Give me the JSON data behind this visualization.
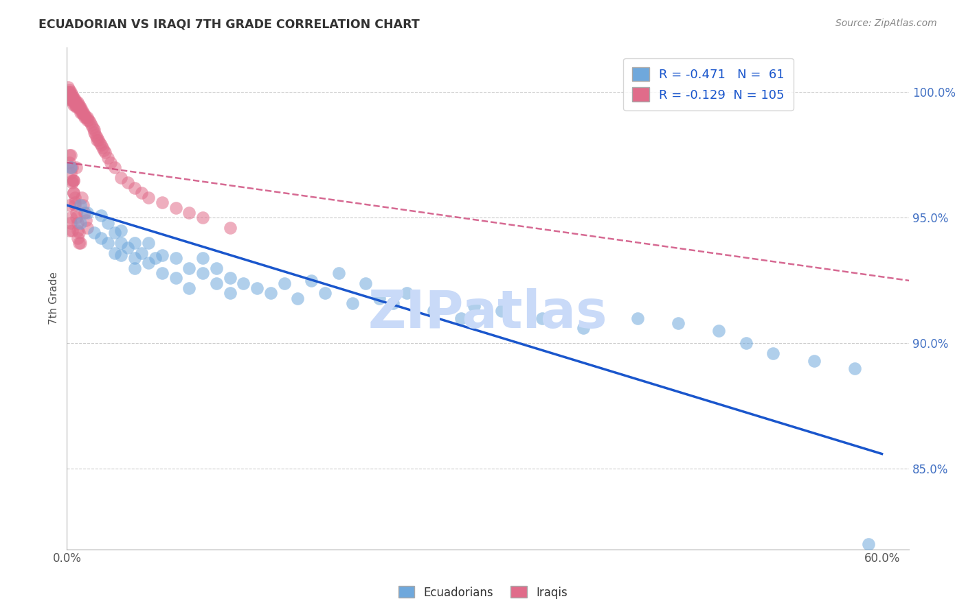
{
  "title": "ECUADORIAN VS IRAQI 7TH GRADE CORRELATION CHART",
  "source": "Source: ZipAtlas.com",
  "ylabel": "7th Grade",
  "xlim": [
    0.0,
    0.62
  ],
  "ylim": [
    0.818,
    1.018
  ],
  "xticks": [
    0.0,
    0.1,
    0.2,
    0.3,
    0.4,
    0.5,
    0.6
  ],
  "xticklabels": [
    "0.0%",
    "",
    "",
    "",
    "",
    "",
    "60.0%"
  ],
  "yticks": [
    0.85,
    0.9,
    0.95,
    1.0
  ],
  "yticklabels": [
    "85.0%",
    "90.0%",
    "95.0%",
    "100.0%"
  ],
  "ytick_color": "#4472c4",
  "blue_color": "#6fa8dc",
  "pink_color": "#e06c8a",
  "blue_line_color": "#1a56cc",
  "pink_line_color": "#cc4477",
  "legend_label_blue": "Ecuadorians",
  "legend_label_pink": "Iraqis",
  "legend_R_blue": "R = -0.471",
  "legend_N_blue": "N =  61",
  "legend_R_pink": "R = -0.129",
  "legend_N_pink": "N = 105",
  "watermark": "ZIPatlas",
  "watermark_color": "#c9daf8",
  "background_color": "#ffffff",
  "grid_color": "#cccccc",
  "blue_trend_x0": 0.0,
  "blue_trend_x1": 0.6,
  "blue_trend_y0": 0.955,
  "blue_trend_y1": 0.856,
  "pink_trend_x0": 0.0,
  "pink_trend_x1": 0.62,
  "pink_trend_y0": 0.972,
  "pink_trend_y1": 0.925,
  "blue_x": [
    0.003,
    0.01,
    0.01,
    0.015,
    0.02,
    0.025,
    0.025,
    0.03,
    0.03,
    0.035,
    0.035,
    0.04,
    0.04,
    0.04,
    0.045,
    0.05,
    0.05,
    0.05,
    0.055,
    0.06,
    0.06,
    0.065,
    0.07,
    0.07,
    0.08,
    0.08,
    0.09,
    0.09,
    0.1,
    0.1,
    0.11,
    0.11,
    0.12,
    0.12,
    0.13,
    0.14,
    0.15,
    0.16,
    0.17,
    0.18,
    0.19,
    0.2,
    0.21,
    0.22,
    0.23,
    0.24,
    0.25,
    0.27,
    0.29,
    0.3,
    0.32,
    0.35,
    0.38,
    0.42,
    0.45,
    0.48,
    0.5,
    0.52,
    0.55,
    0.58,
    0.59
  ],
  "blue_y": [
    0.97,
    0.955,
    0.948,
    0.952,
    0.944,
    0.951,
    0.942,
    0.948,
    0.94,
    0.944,
    0.936,
    0.94,
    0.935,
    0.945,
    0.938,
    0.94,
    0.934,
    0.93,
    0.936,
    0.94,
    0.932,
    0.934,
    0.935,
    0.928,
    0.934,
    0.926,
    0.93,
    0.922,
    0.928,
    0.934,
    0.93,
    0.924,
    0.926,
    0.92,
    0.924,
    0.922,
    0.92,
    0.924,
    0.918,
    0.925,
    0.92,
    0.928,
    0.916,
    0.924,
    0.918,
    0.916,
    0.92,
    0.913,
    0.91,
    0.915,
    0.913,
    0.91,
    0.906,
    0.91,
    0.908,
    0.905,
    0.9,
    0.896,
    0.893,
    0.89,
    0.82
  ],
  "pink_x": [
    0.001,
    0.001,
    0.001,
    0.001,
    0.001,
    0.002,
    0.002,
    0.002,
    0.002,
    0.003,
    0.003,
    0.003,
    0.003,
    0.004,
    0.004,
    0.004,
    0.005,
    0.005,
    0.005,
    0.005,
    0.006,
    0.006,
    0.006,
    0.007,
    0.007,
    0.007,
    0.008,
    0.008,
    0.008,
    0.009,
    0.009,
    0.01,
    0.01,
    0.01,
    0.011,
    0.011,
    0.012,
    0.012,
    0.013,
    0.013,
    0.014,
    0.015,
    0.015,
    0.016,
    0.017,
    0.018,
    0.019,
    0.02,
    0.02,
    0.021,
    0.022,
    0.022,
    0.023,
    0.024,
    0.025,
    0.026,
    0.027,
    0.028,
    0.03,
    0.032,
    0.035,
    0.04,
    0.045,
    0.05,
    0.055,
    0.06,
    0.07,
    0.08,
    0.09,
    0.1,
    0.12,
    0.002,
    0.003,
    0.004,
    0.005,
    0.006,
    0.007,
    0.008,
    0.009,
    0.002,
    0.003,
    0.004,
    0.005,
    0.006,
    0.007,
    0.008,
    0.009,
    0.01,
    0.011,
    0.012,
    0.013,
    0.014,
    0.015,
    0.003,
    0.004,
    0.005,
    0.003,
    0.002,
    0.004,
    0.003,
    0.002,
    0.005,
    0.006,
    0.007,
    0.008
  ],
  "pink_y": [
    1.002,
    1.0,
    0.999,
    0.998,
    0.997,
    1.001,
    1.0,
    0.999,
    0.998,
    1.0,
    0.999,
    0.998,
    0.997,
    0.999,
    0.998,
    0.997,
    0.998,
    0.997,
    0.996,
    0.995,
    0.997,
    0.996,
    0.995,
    0.996,
    0.995,
    0.994,
    0.996,
    0.995,
    0.994,
    0.995,
    0.994,
    0.994,
    0.993,
    0.992,
    0.993,
    0.992,
    0.992,
    0.991,
    0.991,
    0.99,
    0.99,
    0.99,
    0.989,
    0.989,
    0.988,
    0.987,
    0.986,
    0.985,
    0.984,
    0.983,
    0.982,
    0.981,
    0.981,
    0.98,
    0.979,
    0.978,
    0.977,
    0.976,
    0.974,
    0.972,
    0.97,
    0.966,
    0.964,
    0.962,
    0.96,
    0.958,
    0.956,
    0.954,
    0.952,
    0.95,
    0.946,
    0.975,
    0.97,
    0.965,
    0.96,
    0.955,
    0.95,
    0.945,
    0.94,
    0.972,
    0.968,
    0.964,
    0.96,
    0.956,
    0.952,
    0.948,
    0.944,
    0.94,
    0.958,
    0.955,
    0.952,
    0.949,
    0.946,
    0.975,
    0.97,
    0.965,
    0.95,
    0.955,
    0.945,
    0.948,
    0.945,
    0.965,
    0.958,
    0.97,
    0.942
  ]
}
